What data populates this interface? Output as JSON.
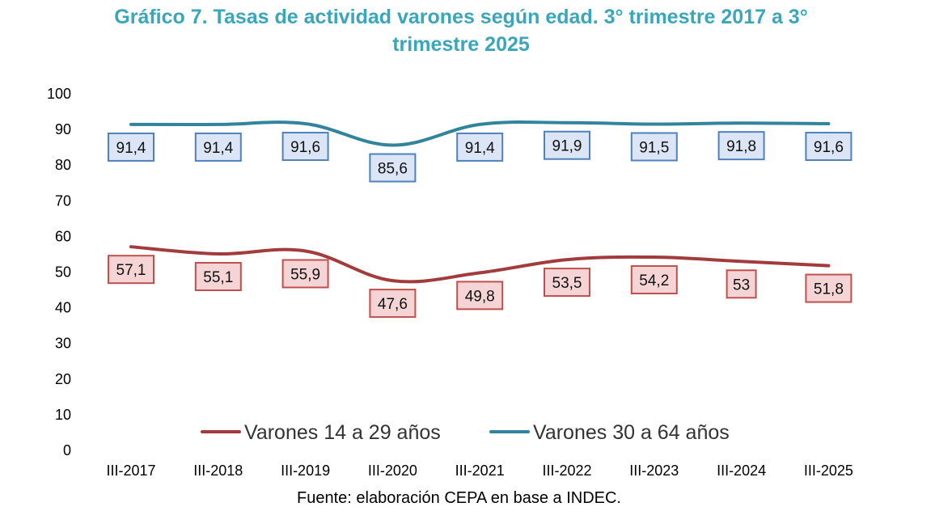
{
  "title_line1": "Gráfico 7. Tasas de actividad varones según edad. 3° trimestre 2017 a 3°",
  "title_line2": "trimestre 2025",
  "source": "Fuente: elaboración CEPA en base a INDEC.",
  "colors": {
    "title": "#3aa6b9",
    "young_line": "#a23b3b",
    "young_box_fill": "#f4d4d4",
    "young_box_border": "#c0504d",
    "adult_line": "#31849b",
    "adult_box_fill": "#dbe5f5",
    "adult_box_border": "#4f81bd"
  },
  "chart_data": {
    "type": "line",
    "title": "Gráfico 7. Tasas de actividad varones según edad. 3° trimestre 2017 a 3° trimestre 2025",
    "categories": [
      "III-2017",
      "III-2018",
      "III-2019",
      "III-2020",
      "III-2021",
      "III-2022",
      "III-2023",
      "III-2024",
      "III-2025"
    ],
    "yticks": [
      "0",
      "10",
      "20",
      "30",
      "40",
      "50",
      "60",
      "70",
      "80",
      "90",
      "100"
    ],
    "ylim": [
      0,
      100
    ],
    "grid": false,
    "legend_position": "bottom",
    "series": [
      {
        "key": "young",
        "name": "Varones 14 a 29 años",
        "values": [
          57.1,
          55.1,
          55.9,
          47.6,
          49.8,
          53.5,
          54.2,
          53,
          51.8
        ],
        "labels": [
          "57,1",
          "55,1",
          "55,9",
          "47,6",
          "49,8",
          "53,5",
          "54,2",
          "53",
          "51,8"
        ]
      },
      {
        "key": "adult",
        "name": "Varones 30 a 64 años",
        "values": [
          91.4,
          91.4,
          91.6,
          85.6,
          91.4,
          91.9,
          91.5,
          91.8,
          91.6
        ],
        "labels": [
          "91,4",
          "91,4",
          "91,6",
          "85,6",
          "91,4",
          "91,9",
          "91,5",
          "91,8",
          "91,6"
        ]
      }
    ]
  }
}
